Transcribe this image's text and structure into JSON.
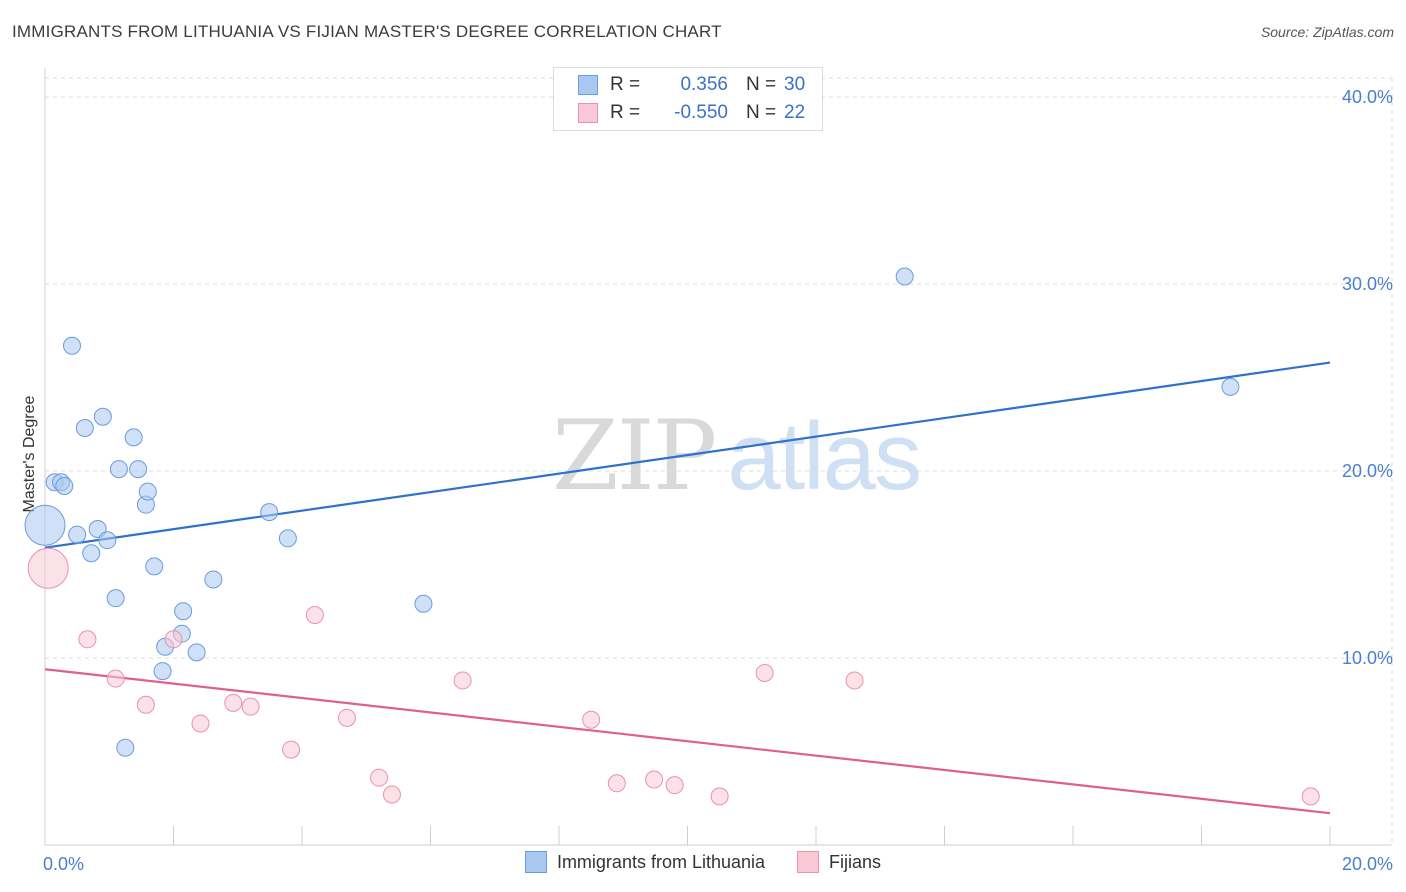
{
  "header": {
    "title": "IMMIGRANTS FROM LITHUANIA VS FIJIAN MASTER'S DEGREE CORRELATION CHART",
    "source": "Source: ZipAtlas.com"
  },
  "watermark": {
    "zip": "ZIP",
    "atlas": "atlas"
  },
  "legend_top": {
    "rows": [
      {
        "r_label": "R =",
        "r_value": "0.356",
        "n_label": "N =",
        "n_value": "30",
        "color": "#a9c8f0",
        "border": "#6b9bdc"
      },
      {
        "r_label": "R =",
        "r_value": "-0.550",
        "n_label": "N =",
        "n_value": "22",
        "color": "#f8c8d6",
        "border": "#e892ad"
      }
    ]
  },
  "legend_bottom": {
    "items": [
      {
        "label": "Immigrants from Lithuania",
        "color": "#a9c8f0",
        "border": "#6b9bdc"
      },
      {
        "label": "Fijians",
        "color": "#f8c8d6",
        "border": "#e892ad"
      }
    ]
  },
  "chart_data": {
    "type": "scatter",
    "title": "IMMIGRANTS FROM LITHUANIA VS FIJIAN MASTER'S DEGREE CORRELATION CHART",
    "xlabel": "",
    "ylabel": "Master's Degree",
    "xlim": [
      0,
      20
    ],
    "ylim": [
      0,
      40
    ],
    "x_tick_labels": [
      "0.0%",
      "20.0%"
    ],
    "y_ticks": [
      10,
      20,
      30,
      40
    ],
    "y_tick_labels": [
      "10.0%",
      "20.0%",
      "30.0%",
      "40.0%"
    ],
    "grid": true,
    "legend": "bottom",
    "series": [
      {
        "name": "Immigrants from Lithuania",
        "color": "#a9c8f0",
        "edge_color": "#6b9bdc",
        "line_color": "#2f72cc",
        "trend": {
          "x": [
            0,
            20
          ],
          "y": [
            15.9,
            25.8
          ]
        },
        "points": [
          {
            "x": 0.0,
            "y": 17.1,
            "big": true
          },
          {
            "x": 0.15,
            "y": 19.4
          },
          {
            "x": 0.25,
            "y": 19.4
          },
          {
            "x": 0.3,
            "y": 19.2
          },
          {
            "x": 0.42,
            "y": 26.7
          },
          {
            "x": 0.5,
            "y": 16.6
          },
          {
            "x": 0.62,
            "y": 22.3
          },
          {
            "x": 0.72,
            "y": 15.6
          },
          {
            "x": 0.82,
            "y": 16.9
          },
          {
            "x": 0.9,
            "y": 22.9
          },
          {
            "x": 0.97,
            "y": 16.3
          },
          {
            "x": 1.1,
            "y": 13.2
          },
          {
            "x": 1.15,
            "y": 20.1
          },
          {
            "x": 1.25,
            "y": 5.2
          },
          {
            "x": 1.38,
            "y": 21.8
          },
          {
            "x": 1.45,
            "y": 20.1
          },
          {
            "x": 1.57,
            "y": 18.2
          },
          {
            "x": 1.6,
            "y": 18.9
          },
          {
            "x": 1.7,
            "y": 14.9
          },
          {
            "x": 1.83,
            "y": 9.3
          },
          {
            "x": 1.87,
            "y": 10.6
          },
          {
            "x": 2.13,
            "y": 11.3
          },
          {
            "x": 2.15,
            "y": 12.5
          },
          {
            "x": 2.36,
            "y": 10.3
          },
          {
            "x": 2.62,
            "y": 14.2
          },
          {
            "x": 3.49,
            "y": 17.8
          },
          {
            "x": 3.78,
            "y": 16.4
          },
          {
            "x": 5.89,
            "y": 12.9
          },
          {
            "x": 13.38,
            "y": 30.4
          },
          {
            "x": 18.45,
            "y": 24.5
          }
        ]
      },
      {
        "name": "Fijians",
        "color": "#f8c8d6",
        "edge_color": "#e892ad",
        "line_color": "#e0608d",
        "trend": {
          "x": [
            0,
            20
          ],
          "y": [
            9.4,
            1.7
          ]
        },
        "points": [
          {
            "x": 0.05,
            "y": 14.8,
            "big": true
          },
          {
            "x": 0.66,
            "y": 11.0
          },
          {
            "x": 1.1,
            "y": 8.9
          },
          {
            "x": 1.57,
            "y": 7.5
          },
          {
            "x": 2.0,
            "y": 11.0
          },
          {
            "x": 2.42,
            "y": 6.5
          },
          {
            "x": 2.93,
            "y": 7.6
          },
          {
            "x": 3.2,
            "y": 7.4
          },
          {
            "x": 3.83,
            "y": 5.1
          },
          {
            "x": 4.2,
            "y": 12.3
          },
          {
            "x": 4.7,
            "y": 6.8
          },
          {
            "x": 5.2,
            "y": 3.6
          },
          {
            "x": 5.4,
            "y": 2.7
          },
          {
            "x": 6.5,
            "y": 8.8
          },
          {
            "x": 8.5,
            "y": 6.7
          },
          {
            "x": 8.9,
            "y": 3.3
          },
          {
            "x": 9.48,
            "y": 3.5
          },
          {
            "x": 9.8,
            "y": 3.2
          },
          {
            "x": 10.5,
            "y": 2.6
          },
          {
            "x": 11.2,
            "y": 9.2
          },
          {
            "x": 12.6,
            "y": 8.8
          },
          {
            "x": 19.7,
            "y": 2.6
          }
        ]
      }
    ]
  }
}
